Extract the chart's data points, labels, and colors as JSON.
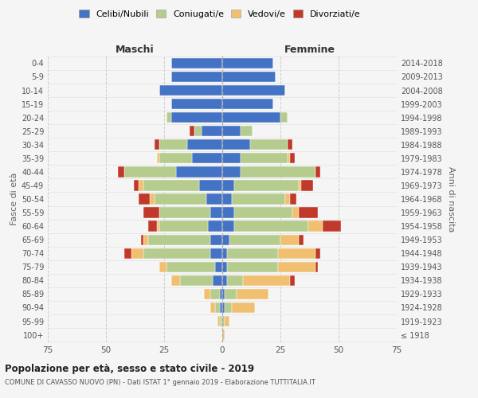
{
  "age_groups": [
    "100+",
    "95-99",
    "90-94",
    "85-89",
    "80-84",
    "75-79",
    "70-74",
    "65-69",
    "60-64",
    "55-59",
    "50-54",
    "45-49",
    "40-44",
    "35-39",
    "30-34",
    "25-29",
    "20-24",
    "15-19",
    "10-14",
    "5-9",
    "0-4"
  ],
  "birth_years": [
    "≤ 1918",
    "1919-1923",
    "1924-1928",
    "1929-1933",
    "1934-1938",
    "1939-1943",
    "1944-1948",
    "1949-1953",
    "1954-1958",
    "1959-1963",
    "1964-1968",
    "1969-1973",
    "1974-1978",
    "1979-1983",
    "1984-1988",
    "1989-1993",
    "1994-1998",
    "1999-2003",
    "2004-2008",
    "2009-2013",
    "2014-2018"
  ],
  "maschi_celibe": [
    0,
    0,
    1,
    1,
    4,
    3,
    5,
    5,
    6,
    5,
    7,
    10,
    20,
    13,
    15,
    9,
    22,
    22,
    27,
    22,
    22
  ],
  "maschi_coniugato": [
    0,
    1,
    2,
    4,
    14,
    21,
    29,
    27,
    21,
    22,
    22,
    24,
    22,
    14,
    12,
    3,
    2,
    0,
    0,
    0,
    0
  ],
  "maschi_vedovo": [
    0,
    1,
    2,
    3,
    4,
    3,
    5,
    2,
    1,
    0,
    2,
    2,
    0,
    1,
    0,
    0,
    0,
    0,
    0,
    0,
    0
  ],
  "maschi_divorziato": [
    0,
    0,
    0,
    0,
    0,
    0,
    3,
    1,
    4,
    7,
    5,
    2,
    3,
    0,
    2,
    2,
    0,
    0,
    0,
    0,
    0
  ],
  "femmine_celibe": [
    0,
    0,
    1,
    1,
    2,
    2,
    2,
    3,
    5,
    5,
    4,
    5,
    8,
    8,
    12,
    8,
    25,
    22,
    27,
    23,
    22
  ],
  "femmine_coniugata": [
    0,
    1,
    3,
    5,
    7,
    22,
    22,
    22,
    32,
    25,
    23,
    28,
    32,
    20,
    16,
    5,
    3,
    0,
    0,
    0,
    0
  ],
  "femmine_vedova": [
    1,
    2,
    10,
    14,
    20,
    16,
    16,
    8,
    6,
    3,
    2,
    1,
    0,
    1,
    0,
    0,
    0,
    0,
    0,
    0,
    0
  ],
  "femmine_divorziata": [
    0,
    0,
    0,
    0,
    2,
    1,
    2,
    2,
    8,
    8,
    3,
    5,
    2,
    2,
    2,
    0,
    0,
    0,
    0,
    0,
    0
  ],
  "color_celibe": "#4472c4",
  "color_coniugato": "#b5cc8e",
  "color_vedovo": "#f0c070",
  "color_divorziato": "#c0392b",
  "background": "#f5f5f5",
  "title": "Popolazione per età, sesso e stato civile - 2019",
  "subtitle": "COMUNE DI CAVASSO NUOVO (PN) - Dati ISTAT 1° gennaio 2019 - Elaborazione TUTTITALIA.IT",
  "xlabel_left": "Maschi",
  "xlabel_right": "Femmine",
  "ylabel_left": "Fasce di età",
  "ylabel_right": "Anni di nascita",
  "xlim": 75,
  "legend_labels": [
    "Celibi/Nubili",
    "Coniugati/e",
    "Vedovi/e",
    "Divorziati/e"
  ]
}
